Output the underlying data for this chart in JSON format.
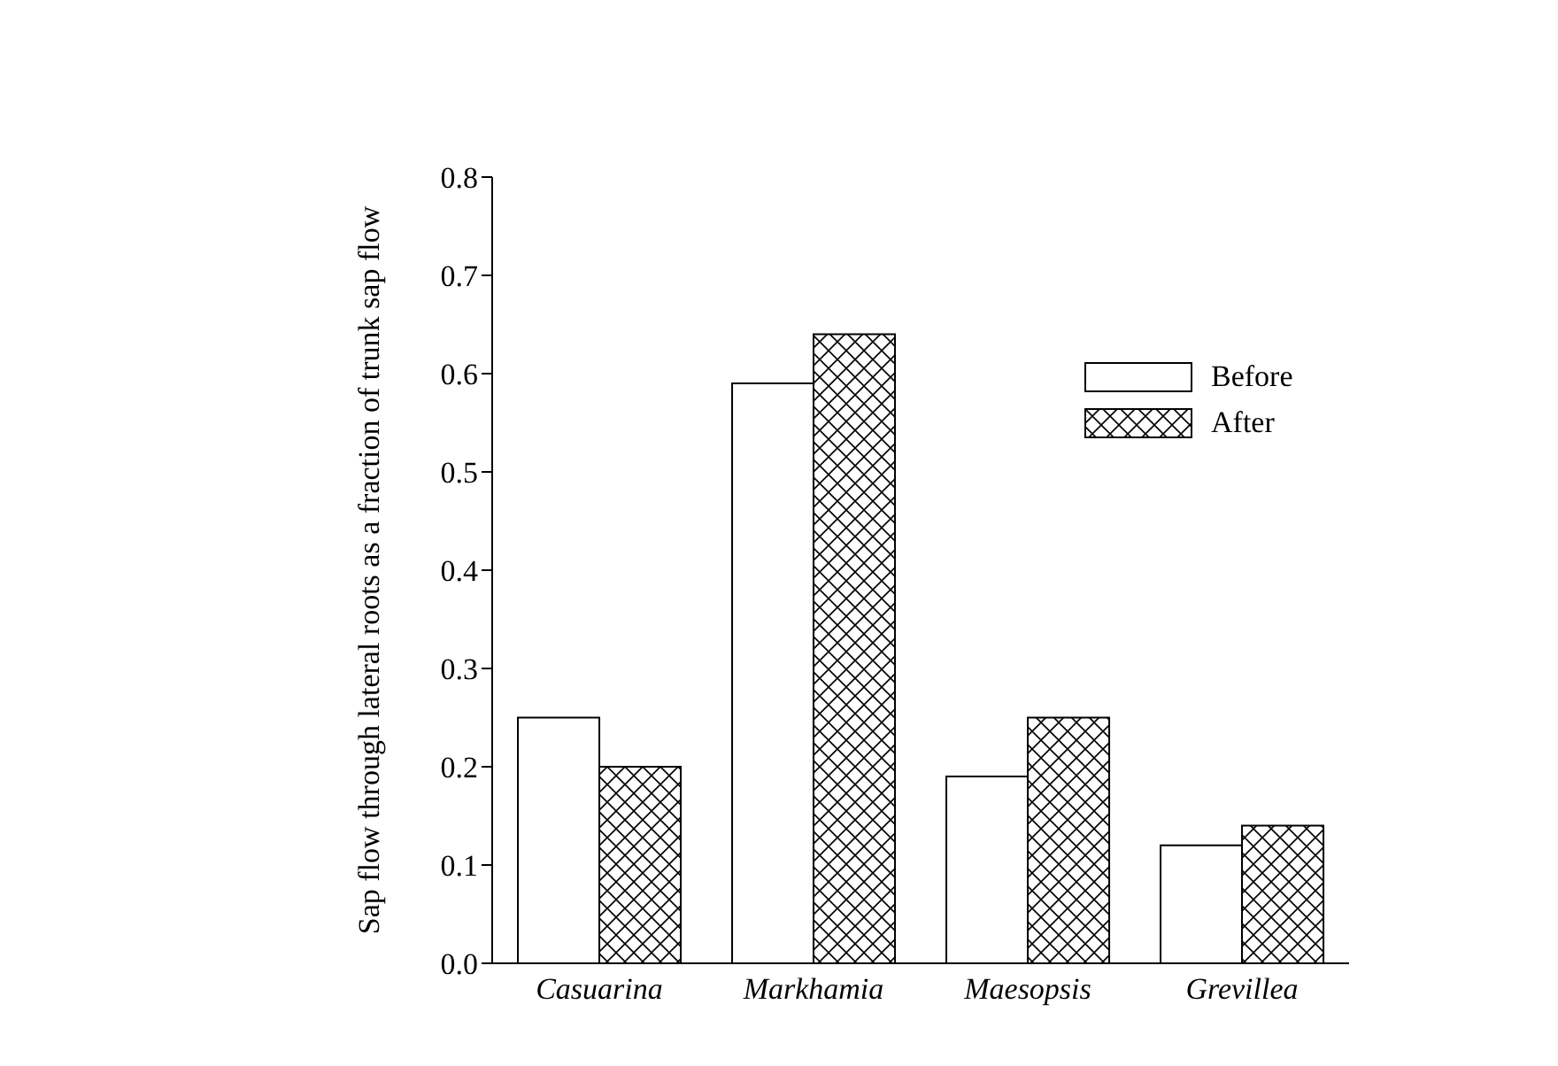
{
  "chart_data": {
    "type": "bar",
    "ylabel": "Sap flow through lateral roots as a fraction of trunk sap flow",
    "categories": [
      "Casuarina",
      "Markhamia",
      "Maesopsis",
      "Grevillea"
    ],
    "series": [
      {
        "name": "Before",
        "color": "#ffffff",
        "values": [
          0.25,
          0.59,
          0.19,
          0.12
        ]
      },
      {
        "name": "After",
        "color": "#000000",
        "values": [
          0.2,
          0.64,
          0.25,
          0.14
        ]
      }
    ],
    "ylim": [
      0,
      0.8
    ],
    "yticks": [
      {
        "value": 0,
        "label": "0.0"
      },
      0.1,
      0.2,
      0.3,
      0.4,
      0.5,
      0.6,
      0.7,
      0.8
    ],
    "legend": "top right"
  }
}
